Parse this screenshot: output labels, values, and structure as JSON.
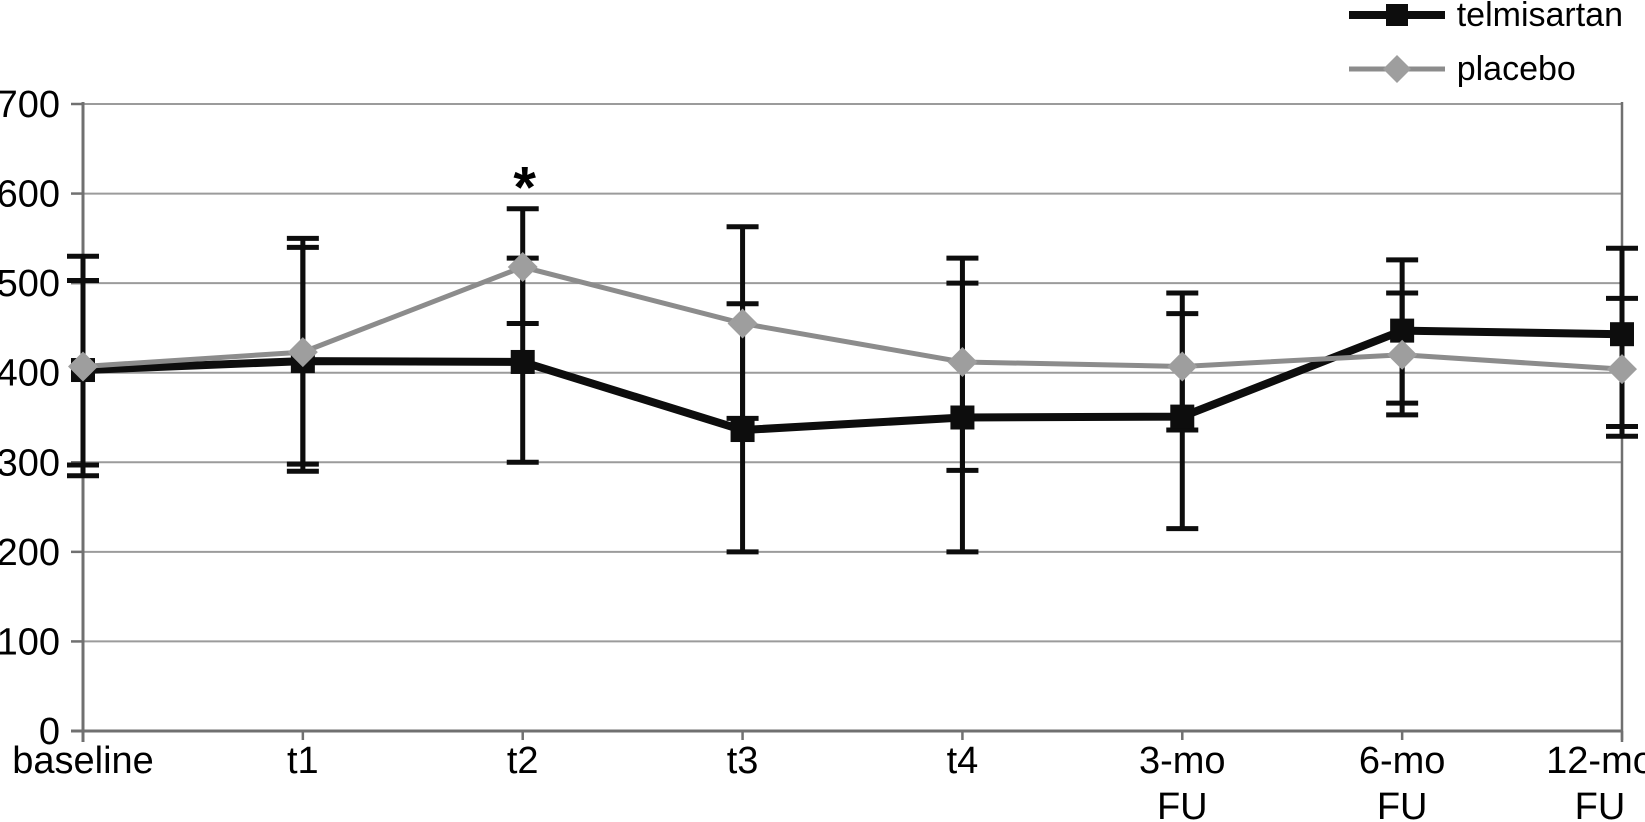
{
  "figure": {
    "background": "#ffffff"
  },
  "chart_data": {
    "type": "line",
    "title": "",
    "xlabel": "",
    "ylabel": "",
    "categories": [
      "baseline",
      "t1",
      "t2",
      "t3",
      "t4",
      "3-mo FU",
      "6-mo FU",
      "12-mo FU"
    ],
    "x_tick_lines": [
      [
        "baseline"
      ],
      [
        "t1"
      ],
      [
        "t2"
      ],
      [
        "t3"
      ],
      [
        "t4"
      ],
      [
        "3-mo",
        "FU"
      ],
      [
        "6-mo",
        "FU"
      ],
      [
        "12-mo",
        "FU"
      ]
    ],
    "y_ticks": [
      0,
      100,
      200,
      300,
      400,
      500,
      600,
      700
    ],
    "ylim": [
      0,
      700
    ],
    "grid": true,
    "legend_position": "top-right",
    "series": [
      {
        "name": "telmisartan",
        "marker": "square",
        "line_color": "#0d0d0d",
        "marker_color": "#0d0d0d",
        "line_width": 8,
        "values": [
          403,
          413,
          412,
          336,
          350,
          351,
          447,
          443
        ],
        "error_low": [
          285,
          290,
          300,
          200,
          200,
          226,
          366,
          340
        ],
        "error_high": [
          530,
          540,
          528,
          477,
          500,
          466,
          526,
          539
        ]
      },
      {
        "name": "placebo",
        "marker": "diamond",
        "line_color": "#8c8c8c",
        "marker_color": "#9e9e9e",
        "line_width": 5,
        "values": [
          407,
          423,
          518,
          455,
          412,
          407,
          420,
          404
        ],
        "error_low": [
          297,
          298,
          455,
          349,
          291,
          336,
          353,
          329
        ],
        "error_high": [
          503,
          550,
          583,
          563,
          528,
          489,
          489,
          483
        ]
      }
    ],
    "annotations": [
      {
        "text": "*",
        "category_index": 2,
        "value": 620
      }
    ],
    "colors": {
      "error_bar": "#0d0d0d",
      "gridline": "#9b9b9b",
      "axis": "#707070",
      "tick_label": "#000000",
      "background": "#ffffff"
    }
  }
}
